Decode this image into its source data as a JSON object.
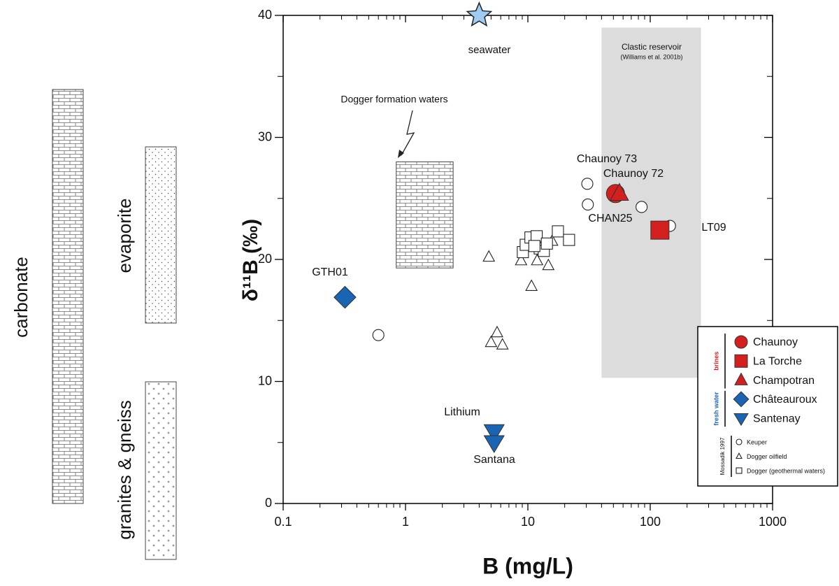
{
  "chart_data": {
    "type": "scatter",
    "x_label": "B (mg/L)",
    "y_label": "δ¹¹B (‰)",
    "xscale": "log",
    "xlim": [
      0.1,
      1000
    ],
    "xticks": [
      0.1,
      1,
      10,
      100,
      1000
    ],
    "ylim": [
      0,
      40
    ],
    "yticks": [
      0,
      10,
      20,
      30,
      40
    ],
    "series": [
      {
        "name": "Chaunoy",
        "group": "brines",
        "marker": "circle",
        "color": "#d41f1f",
        "x": [
          52
        ],
        "y": [
          25.4
        ]
      },
      {
        "name": "La Torche",
        "group": "brines",
        "marker": "square",
        "color": "#d41f1f",
        "x": [
          120
        ],
        "y": [
          22.4
        ]
      },
      {
        "name": "Champotran",
        "group": "brines",
        "marker": "triangle",
        "color": "#d41f1f",
        "x": [
          56
        ],
        "y": [
          25.4
        ]
      },
      {
        "name": "Châteauroux",
        "group": "fresh water",
        "marker": "diamond",
        "color": "#1a64b4",
        "x": [
          0.32
        ],
        "y": [
          16.9
        ]
      },
      {
        "name": "Santenay",
        "group": "fresh water",
        "marker": "triangle-down",
        "color": "#1a64b4",
        "x": [
          5.3,
          5.3
        ],
        "y": [
          5.9,
          5.0
        ]
      },
      {
        "name": "Keuper",
        "group": "Mossadik 1997",
        "marker": "circle",
        "color": "none",
        "x": [
          0.6,
          30.6,
          30.9,
          85,
          145
        ],
        "y": [
          13.8,
          26.2,
          24.5,
          24.3,
          22.75
        ]
      },
      {
        "name": "Dogger oilfield",
        "group": "Mossadik 1997",
        "marker": "triangle",
        "color": "none",
        "x": [
          4.8,
          8.8,
          10.7,
          11.9,
          14.7,
          5.6,
          5.0,
          6.2,
          15.8
        ],
        "y": [
          20.2,
          19.9,
          17.8,
          19.9,
          19.5,
          14.0,
          13.2,
          13.0,
          21.5
        ]
      },
      {
        "name": "Dogger (geothermal waters)",
        "group": "Mossadik 1997",
        "marker": "square",
        "color": "none",
        "x": [
          9.1,
          9.6,
          10.5,
          11.8,
          12.5,
          13.5,
          14.3,
          17.6,
          21.7,
          11.3
        ],
        "y": [
          20.6,
          21.2,
          21.8,
          21.9,
          20.9,
          20.7,
          21.3,
          22.3,
          21.6,
          21.1
        ]
      }
    ],
    "reference_point": {
      "marker": "star",
      "color": "#9fcbf2",
      "x": [
        4
      ],
      "y": [
        40
      ]
    },
    "regions": [
      {
        "fill": "#dcdcdc",
        "x": [
          40,
          260
        ],
        "y": [
          10.3,
          39
        ]
      },
      {
        "fill": "brick",
        "x": [
          0.84,
          2.45
        ],
        "y": [
          19.3,
          28
        ]
      }
    ],
    "annotations": [
      "seawater",
      "Dogger formation waters",
      "Clastic reservoir",
      "(Williams et al. 2001b)",
      "Chaunoy 73",
      "Chaunoy 72",
      "CHAN25",
      "LT09",
      "GTH01",
      "Lithium",
      "Santana"
    ],
    "lithology": [
      {
        "label": "carbonate",
        "pattern": "brick"
      },
      {
        "label": "evaporite",
        "pattern": "dots"
      },
      {
        "label": "granites & gneiss",
        "pattern": "crosses"
      }
    ]
  }
}
